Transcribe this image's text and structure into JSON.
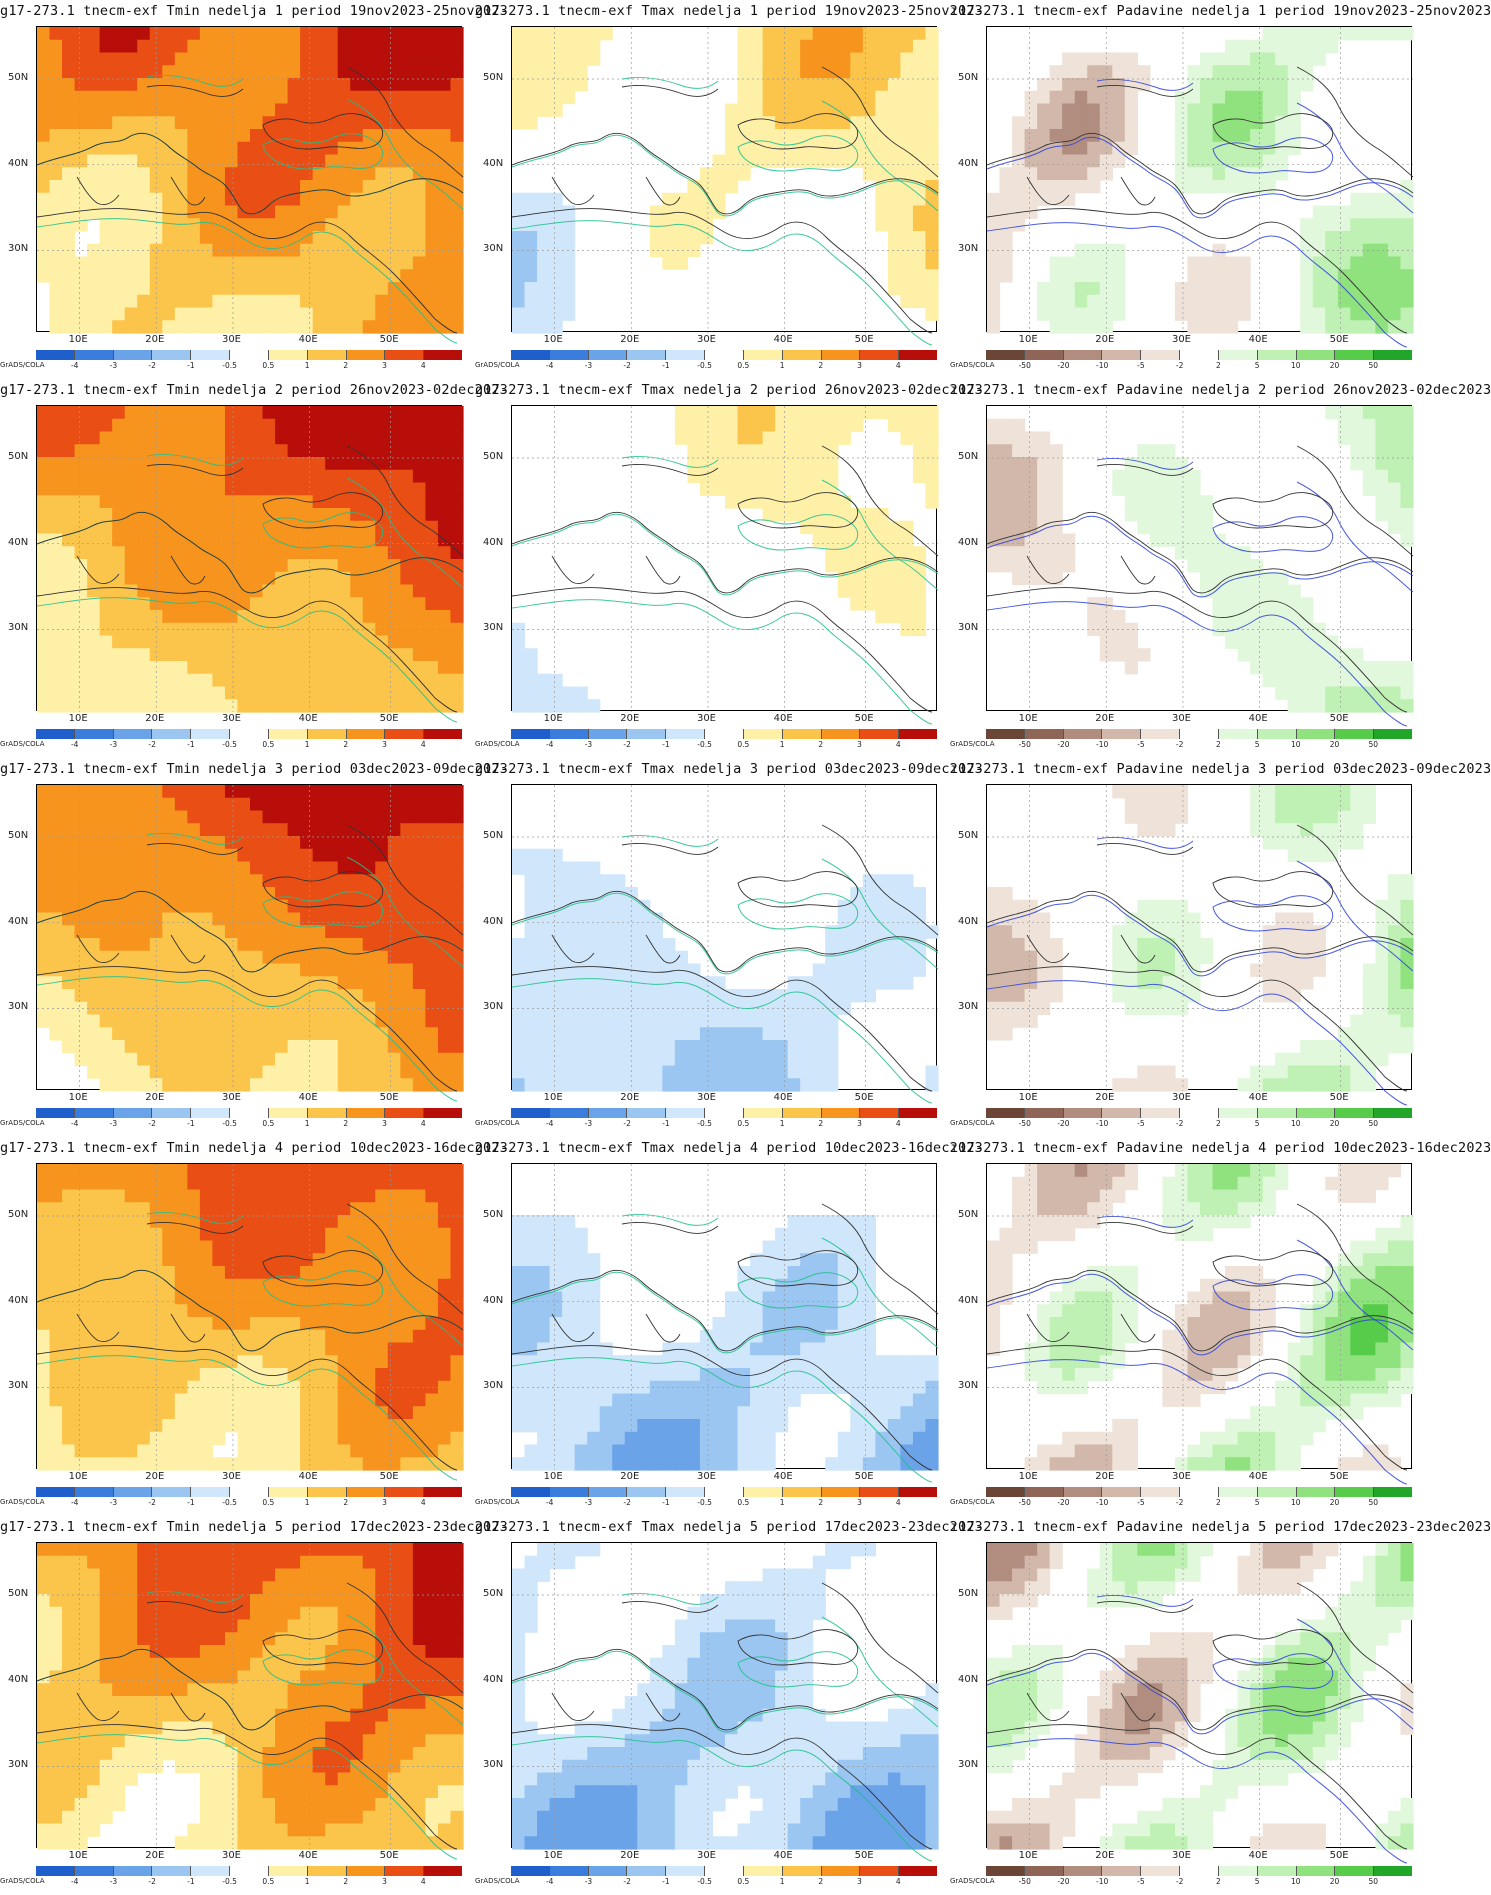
{
  "common": {
    "lat_labels": [
      "50N",
      "40N",
      "30N"
    ],
    "lon_labels": [
      "10E",
      "20E",
      "30E",
      "40E",
      "50E"
    ],
    "credit": "GrADS/COLA"
  },
  "legends": {
    "temp": {
      "labels": [
        "-4",
        "-3",
        "-2",
        "-1",
        "-0.5",
        "0.5",
        "1",
        "2",
        "3",
        "4"
      ],
      "colors": [
        "#1f5fcc",
        "#3b7ddc",
        "#6aa3e8",
        "#9cc6f2",
        "#cfe6fb",
        "#ffffff",
        "#fff0a8",
        "#fbc44a",
        "#f7941e",
        "#e94e14",
        "#b80e0a"
      ]
    },
    "precip": {
      "labels": [
        "-50",
        "-20",
        "-10",
        "-5",
        "-2",
        "2",
        "5",
        "10",
        "20",
        "50"
      ],
      "colors": [
        "#6b4536",
        "#8e6556",
        "#b08d7e",
        "#d2b8aa",
        "#efe2d8",
        "#ffffff",
        "#e2f8dc",
        "#bff0b4",
        "#8fe27e",
        "#56cc4a",
        "#22a62a"
      ]
    }
  },
  "rows": [
    {
      "panels": [
        {
          "title": "g17-273.1  tnecm-exf Tmin nedelja 1 period 19nov2023-25nov2023",
          "kind": "tmin",
          "intensity": 0.75
        },
        {
          "title": "g17-273.1  tnecm-exf Tmax nedelja 1 period 19nov2023-25nov2023",
          "kind": "tmax",
          "intensity": 0.55
        },
        {
          "title": "ı17-273.1  tnecm-exf Padavine nedelja 1 period 19nov2023-25nov2023",
          "kind": "prec",
          "intensity": 0.6
        }
      ]
    },
    {
      "panels": [
        {
          "title": "g17-273.1  tnecm-exf Tmin nedelja 2 period 26nov2023-02dec2023",
          "kind": "tmin",
          "intensity": 0.8
        },
        {
          "title": "g17-273.1  tnecm-exf Tmax nedelja 2 period 26nov2023-02dec2023",
          "kind": "tmax",
          "intensity": 0.45
        },
        {
          "title": "ı17-273.1  tnecm-exf Padavine nedelja 2 period 26nov2023-02dec2023",
          "kind": "prec",
          "intensity": 0.55
        }
      ]
    },
    {
      "panels": [
        {
          "title": "g17-273.1  tnecm-exf Tmin nedelja 3 period 03dec2023-09dec2023",
          "kind": "tmin",
          "intensity": 0.8
        },
        {
          "title": "g17-273.1  tnecm-exf Tmax nedelja 3 period 03dec2023-09dec2023",
          "kind": "tmax",
          "intensity": 0.15
        },
        {
          "title": "ı17-273.1  tnecm-exf Padavine nedelja 3 period 03dec2023-09dec2023",
          "kind": "prec",
          "intensity": 0.4
        }
      ]
    },
    {
      "panels": [
        {
          "title": "g17-273.1  tnecm-exf Tmin nedelja 4 period 10dec2023-16dec2023",
          "kind": "tmin",
          "intensity": 0.7
        },
        {
          "title": "g17-273.1  tnecm-exf Tmax nedelja 4 period 10dec2023-16dec2023",
          "kind": "tmax",
          "intensity": 0.05
        },
        {
          "title": "ı17-273.1  tnecm-exf Padavine nedelja 4 period 10dec2023-16dec2023",
          "kind": "prec",
          "intensity": 0.45
        }
      ]
    },
    {
      "panels": [
        {
          "title": "g17-273.1  tnecm-exf Tmin nedelja 5 period 17dec2023-23dec2023",
          "kind": "tmin",
          "intensity": 0.72
        },
        {
          "title": "g17-273.1  tnecm-exf Tmax nedelja 5 period 17dec2023-23dec2023",
          "kind": "tmax",
          "intensity": 0.0
        },
        {
          "title": "ı17-273.1  tnecm-exf Padavine nedelja 5 period 17dec2023-23dec2023",
          "kind": "prec",
          "intensity": 0.35
        }
      ]
    }
  ]
}
